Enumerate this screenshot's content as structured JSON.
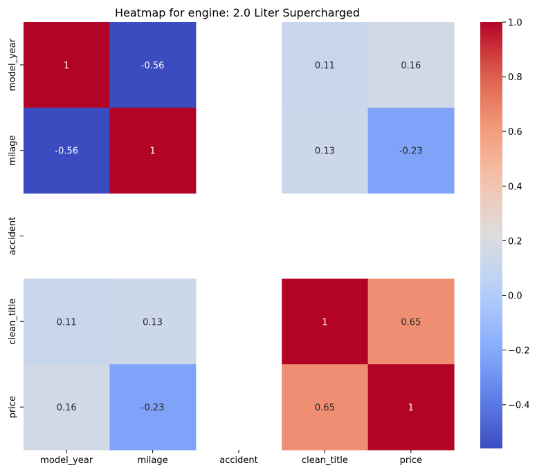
{
  "chart_data": {
    "type": "heatmap",
    "title": "Heatmap for engine: 2.0 Liter Supercharged",
    "xlabel": "",
    "ylabel": "",
    "x_labels": [
      "model_year",
      "milage",
      "accident",
      "clean_title",
      "price"
    ],
    "y_labels": [
      "model_year",
      "milage",
      "accident",
      "clean_title",
      "price"
    ],
    "values": [
      [
        1,
        -0.56,
        null,
        0.11,
        0.16
      ],
      [
        -0.56,
        1,
        null,
        0.13,
        -0.23
      ],
      [
        null,
        null,
        null,
        null,
        null
      ],
      [
        0.11,
        0.13,
        null,
        1,
        0.65
      ],
      [
        0.16,
        -0.23,
        null,
        0.65,
        1
      ]
    ],
    "annotations": [
      [
        "1",
        "-0.56",
        "",
        "0.11",
        "0.16"
      ],
      [
        "-0.56",
        "1",
        "",
        "0.13",
        "-0.23"
      ],
      [
        "",
        "",
        "",
        "",
        ""
      ],
      [
        "0.11",
        "0.13",
        "",
        "1",
        "0.65"
      ],
      [
        "0.16",
        "-0.23",
        "",
        "0.65",
        "1"
      ]
    ],
    "colormap": "coolwarm",
    "colorbar": {
      "vmin": -0.56,
      "vmax": 1.0,
      "ticks": [
        -0.4,
        -0.2,
        0.0,
        0.2,
        0.4,
        0.6,
        0.8,
        1.0
      ],
      "tick_labels": [
        "−0.4",
        "−0.2",
        "0.0",
        "0.2",
        "0.4",
        "0.6",
        "0.8",
        "1.0"
      ]
    },
    "grid": false,
    "legend": "colorbar-right"
  }
}
